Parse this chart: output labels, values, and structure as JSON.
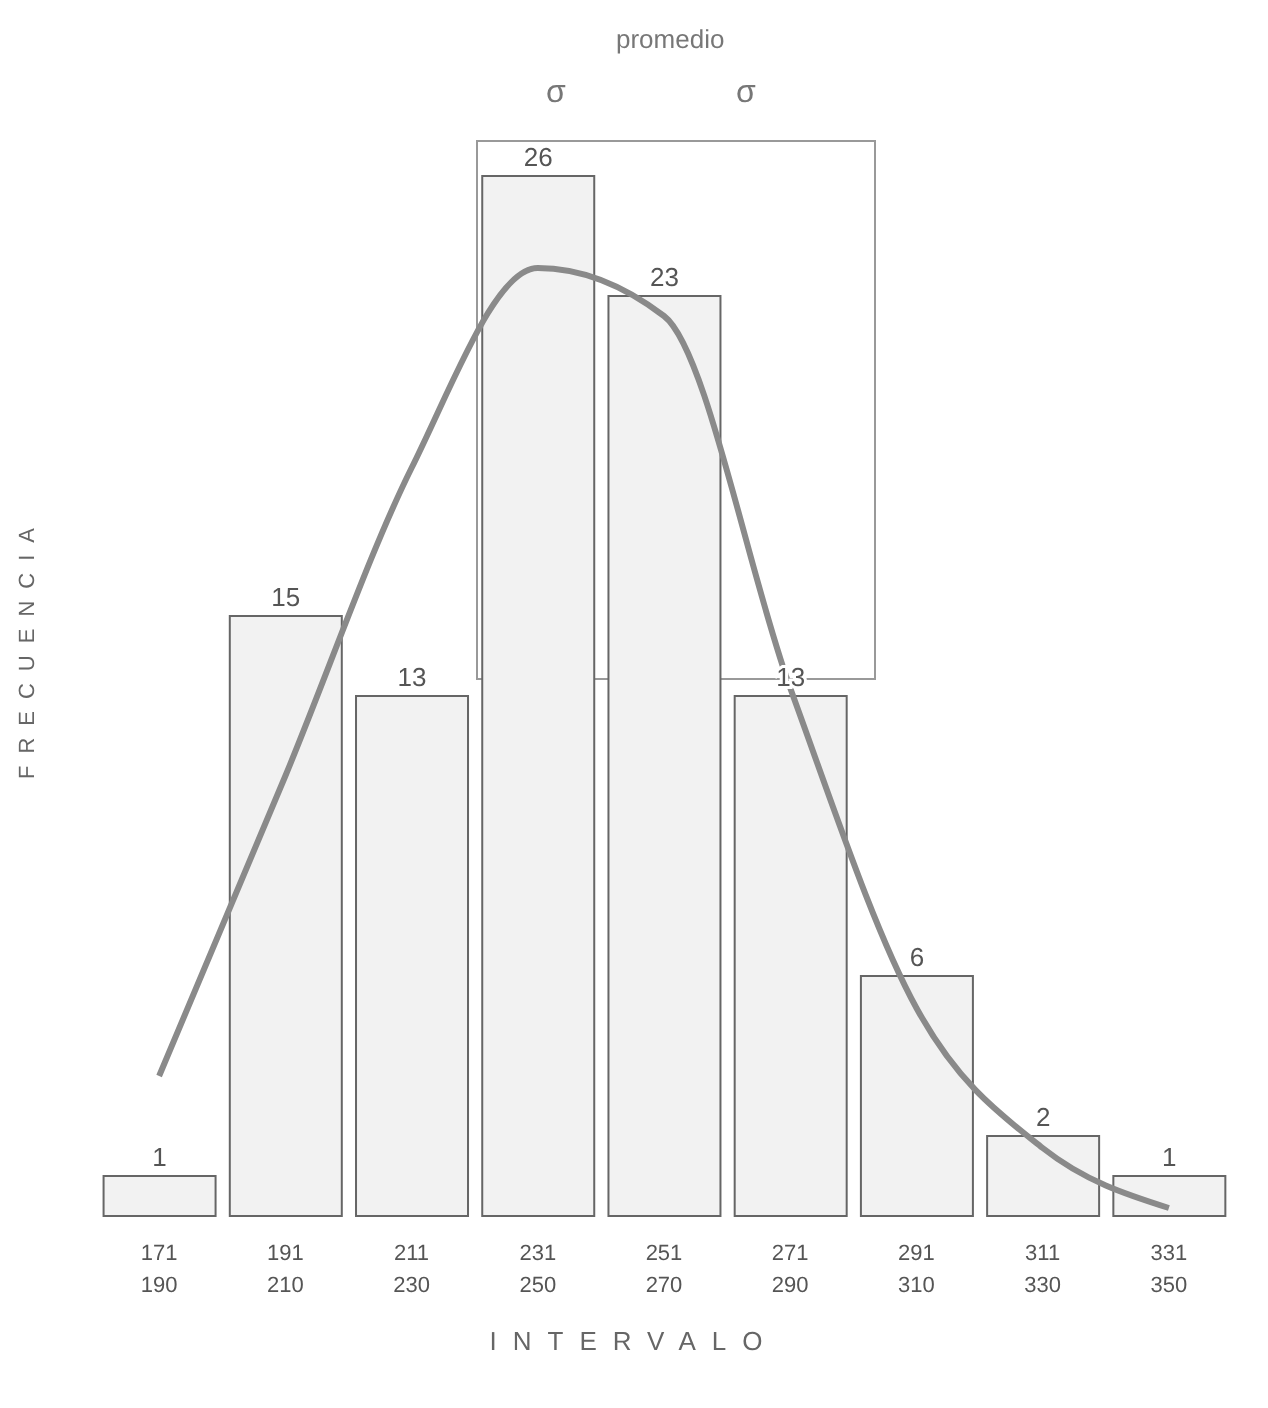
{
  "chart_data": {
    "type": "bar",
    "xlabel": "INTERVALO",
    "ylabel": "FRECUENCIA",
    "categories": [
      "171\n190",
      "191\n210",
      "211\n230",
      "231\n250",
      "251\n270",
      "271\n290",
      "291\n310",
      "311\n330",
      "331\n350"
    ],
    "series": [
      {
        "color": "#f2f2f2",
        "values": [
          1,
          15,
          13,
          26,
          23,
          13,
          6,
          2,
          1
        ],
        "value_labels": [
          "1",
          "15",
          "13",
          "26",
          "23",
          "13",
          "6",
          "2",
          "1"
        ]
      },
      {
        "type": "line",
        "color": "#8a8a8a",
        "values": [
          3.5,
          11,
          18.7,
          23.7,
          22.5,
          13.2,
          5.2,
          1.7,
          0.2
        ]
      }
    ],
    "marker": "none",
    "line_style": "solid",
    "annotations": [
      "promedio",
      "σ",
      "σ"
    ]
  }
}
